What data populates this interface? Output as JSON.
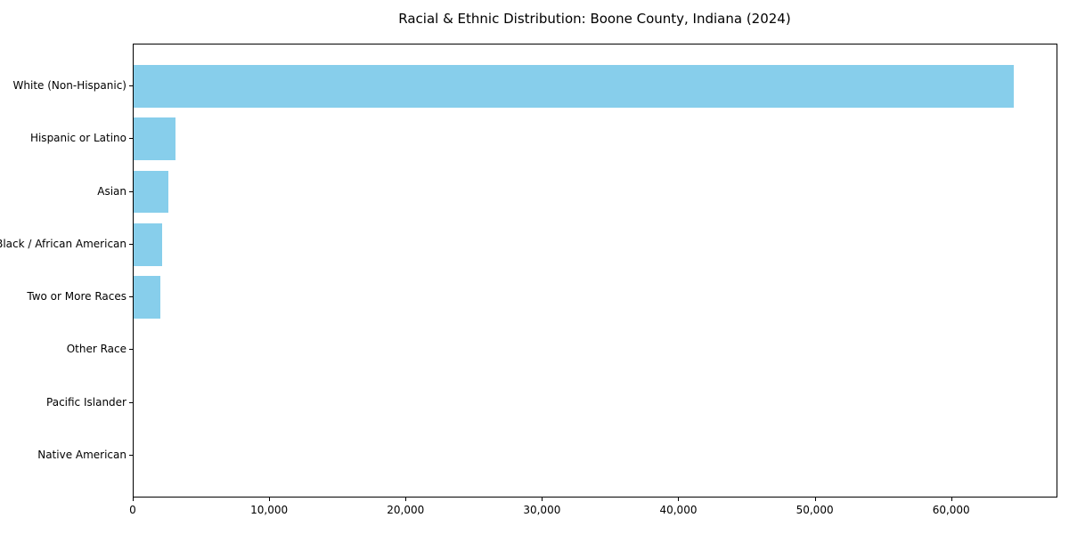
{
  "chart_data": {
    "type": "bar",
    "orientation": "horizontal",
    "title": "Racial & Ethnic Distribution: Boone County, Indiana (2024)",
    "categories": [
      "White (Non-Hispanic)",
      "Hispanic or Latino",
      "Asian",
      "Black / African American",
      "Two or More Races",
      "Other Race",
      "Pacific Islander",
      "Native American"
    ],
    "values": [
      64500,
      3100,
      2550,
      2100,
      1950,
      0,
      0,
      0
    ],
    "xlabel": "",
    "ylabel": "",
    "xlim": [
      0,
      67725
    ],
    "x_ticks": [
      0,
      10000,
      20000,
      30000,
      40000,
      50000,
      60000
    ],
    "x_tick_labels": [
      "0",
      "10,000",
      "20,000",
      "30,000",
      "40,000",
      "50,000",
      "60,000"
    ],
    "bar_color": "#87CEEB",
    "axis_color": "#000000",
    "background_color": "#ffffff",
    "grid": false,
    "legend": null
  }
}
